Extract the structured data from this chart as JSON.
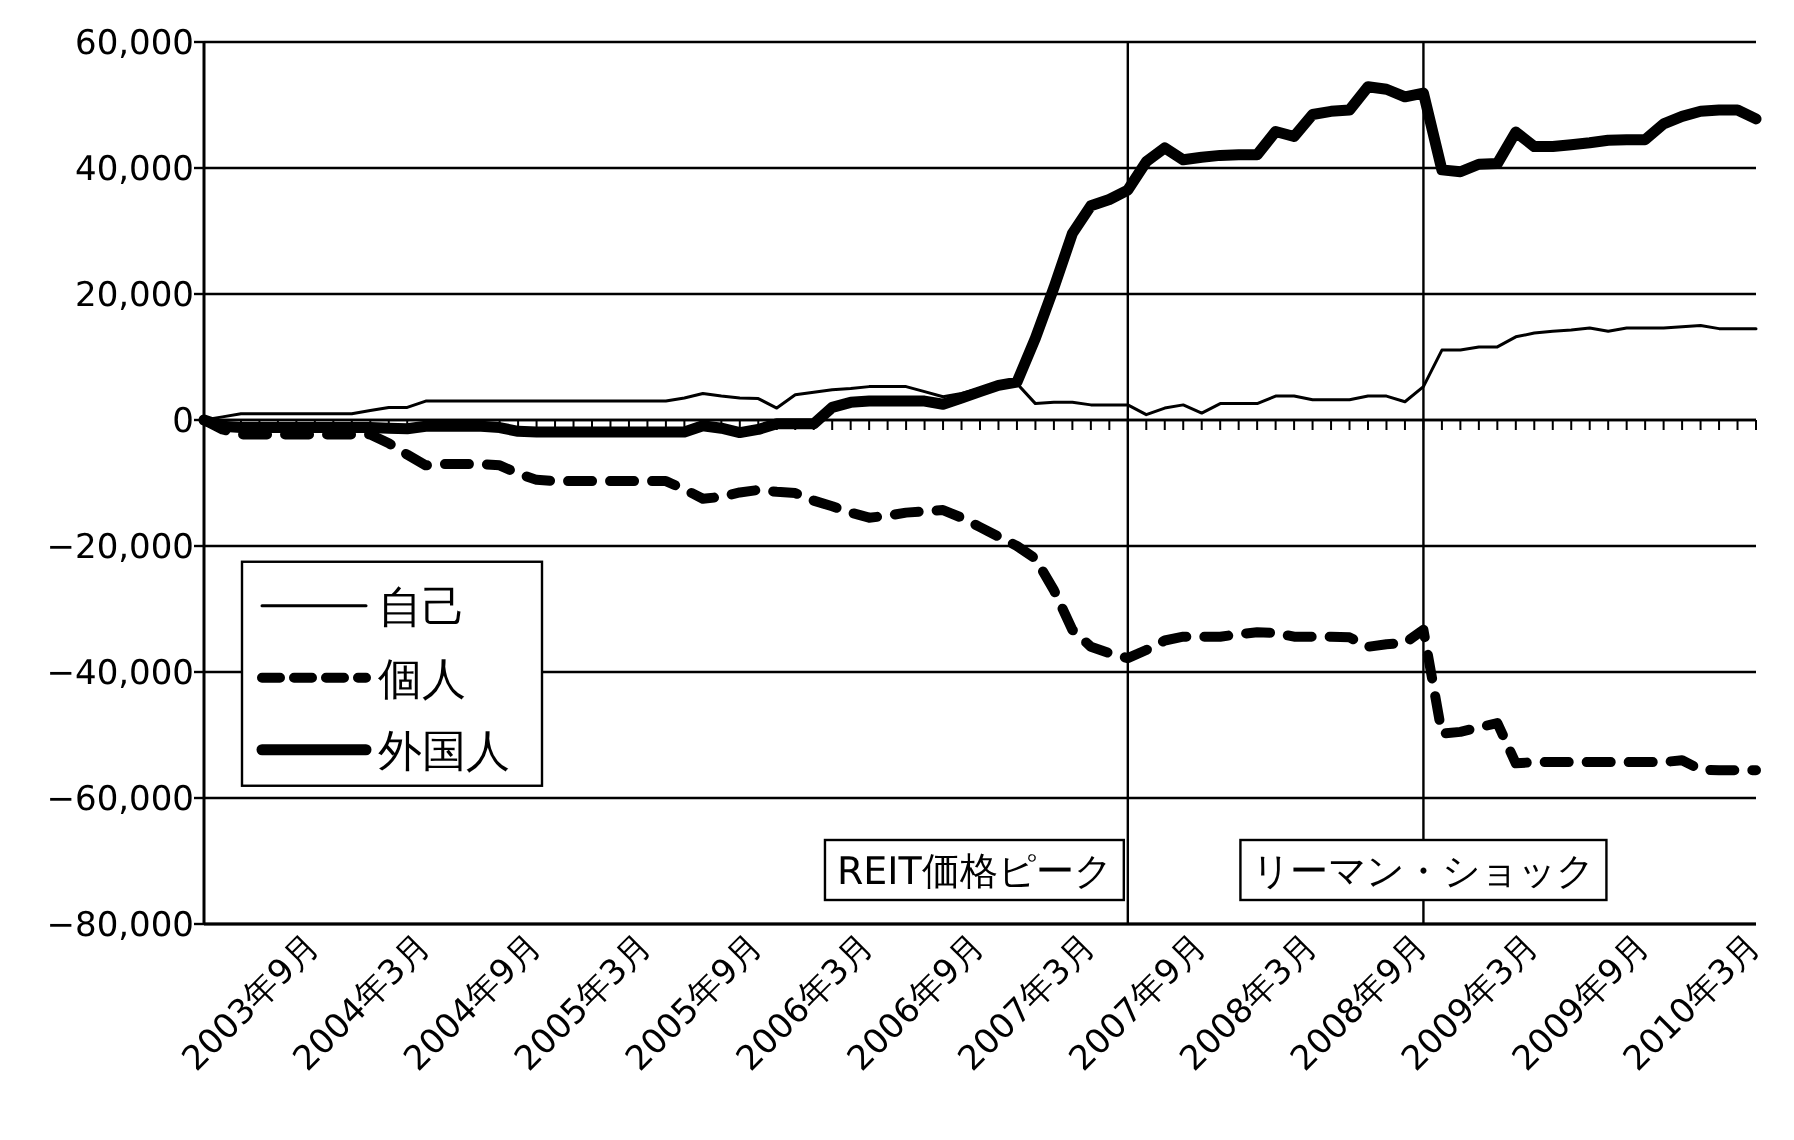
{
  "chart_data": {
    "type": "line",
    "x": [
      "2003-03",
      "2003-04",
      "2003-05",
      "2003-06",
      "2003-07",
      "2003-08",
      "2003-09",
      "2003-10",
      "2003-11",
      "2003-12",
      "2004-01",
      "2004-02",
      "2004-03",
      "2004-04",
      "2004-05",
      "2004-06",
      "2004-07",
      "2004-08",
      "2004-09",
      "2004-10",
      "2004-11",
      "2004-12",
      "2005-01",
      "2005-02",
      "2005-03",
      "2005-04",
      "2005-05",
      "2005-06",
      "2005-07",
      "2005-08",
      "2005-09",
      "2005-10",
      "2005-11",
      "2005-12",
      "2006-01",
      "2006-02",
      "2006-03",
      "2006-04",
      "2006-05",
      "2006-06",
      "2006-07",
      "2006-08",
      "2006-09",
      "2006-10",
      "2006-11",
      "2006-12",
      "2007-01",
      "2007-02",
      "2007-03",
      "2007-04",
      "2007-05",
      "2007-06",
      "2007-07",
      "2007-08",
      "2007-09",
      "2007-10",
      "2007-11",
      "2007-12",
      "2008-01",
      "2008-02",
      "2008-03",
      "2008-04",
      "2008-05",
      "2008-06",
      "2008-07",
      "2008-08",
      "2008-09",
      "2008-10",
      "2008-11",
      "2008-12",
      "2009-01",
      "2009-02",
      "2009-03",
      "2009-04",
      "2009-05",
      "2009-06",
      "2009-07",
      "2009-08",
      "2009-09",
      "2009-10",
      "2009-11",
      "2009-12",
      "2010-01",
      "2010-02",
      "2010-03"
    ],
    "series": [
      {
        "name": "自己",
        "color": "#000000",
        "line_style": "solid",
        "values": [
          0,
          500,
          1000,
          1000,
          1000,
          1000,
          1000,
          1000,
          1000,
          1500,
          2000,
          2000,
          3000,
          3000,
          3000,
          3000,
          3000,
          3000,
          3000,
          3000,
          3000,
          3000,
          3000,
          3000,
          3000,
          3000,
          3500,
          4200,
          3800,
          3500,
          3400,
          1900,
          4000,
          4400,
          4800,
          5000,
          5300,
          5300,
          5300,
          4500,
          3700,
          4200,
          5000,
          5500,
          5800,
          2600,
          2800,
          2800,
          2400,
          2400,
          2400,
          850,
          1900,
          2400,
          1100,
          2600,
          2600,
          2600,
          3800,
          3800,
          3200,
          3200,
          3200,
          3800,
          3800,
          2900,
          5300,
          11100,
          11100,
          11600,
          11600,
          13200,
          13800,
          14100,
          14300,
          14600,
          14100,
          14600,
          14600,
          14600,
          14800,
          15000,
          14500,
          14500,
          14500
        ]
      },
      {
        "name": "個人",
        "color": "#000000",
        "line_style": "dashed",
        "values": [
          0,
          -1500,
          -2300,
          -2300,
          -2300,
          -2300,
          -2300,
          -2300,
          -2300,
          -2300,
          -3700,
          -5500,
          -7200,
          -7000,
          -7000,
          -7000,
          -7200,
          -8500,
          -9500,
          -9700,
          -9700,
          -9700,
          -9700,
          -9700,
          -9700,
          -9700,
          -11000,
          -12500,
          -12200,
          -11500,
          -11100,
          -11400,
          -11600,
          -12800,
          -13700,
          -14700,
          -15500,
          -15200,
          -14700,
          -14500,
          -14300,
          -15500,
          -17000,
          -18500,
          -20000,
          -22000,
          -27000,
          -33300,
          -36000,
          -37000,
          -37800,
          -36500,
          -35000,
          -34400,
          -34400,
          -34400,
          -34000,
          -33700,
          -33800,
          -34400,
          -34400,
          -34400,
          -34500,
          -36000,
          -35600,
          -35400,
          -33300,
          -49800,
          -49500,
          -48800,
          -48100,
          -54500,
          -54300,
          -54300,
          -54300,
          -54300,
          -54300,
          -54300,
          -54300,
          -54300,
          -54000,
          -55500,
          -55600,
          -55600,
          -55600
        ]
      },
      {
        "name": "外国人",
        "color": "#000000",
        "line_style": "solid",
        "values": [
          0,
          -1000,
          -1200,
          -1200,
          -1200,
          -1200,
          -1200,
          -1200,
          -1200,
          -1200,
          -1300,
          -1400,
          -1000,
          -1000,
          -1000,
          -1000,
          -1200,
          -1800,
          -1900,
          -1900,
          -1900,
          -1900,
          -1900,
          -1900,
          -1900,
          -1900,
          -1900,
          -900,
          -1300,
          -2000,
          -1500,
          -600,
          -600,
          -600,
          2000,
          2800,
          3000,
          3000,
          3000,
          3000,
          2500,
          3500,
          4500,
          5500,
          6000,
          13000,
          21000,
          29600,
          34000,
          35000,
          36500,
          41000,
          43200,
          41300,
          41700,
          42000,
          42100,
          42100,
          45800,
          45000,
          48500,
          49000,
          49200,
          52900,
          52500,
          51300,
          51900,
          39700,
          39400,
          40600,
          40700,
          45700,
          43400,
          43400,
          43700,
          44000,
          44400,
          44500,
          44500,
          47000,
          48200,
          49000,
          49200,
          49200,
          47800
        ]
      }
    ],
    "xlim": [
      "2003-03",
      "2010-03"
    ],
    "xticks": [
      {
        "value": "2003-03",
        "label": null
      },
      {
        "value": "2003-04",
        "label": null
      },
      {
        "value": "2003-05",
        "label": null
      },
      {
        "value": "2003-06",
        "label": null
      },
      {
        "value": "2003-07",
        "label": null
      },
      {
        "value": "2003-08",
        "label": null
      },
      {
        "value": "2003-09",
        "label": "2003年9月"
      },
      {
        "value": "2003-10",
        "label": null
      },
      {
        "value": "2003-11",
        "label": null
      },
      {
        "value": "2003-12",
        "label": null
      },
      {
        "value": "2004-01",
        "label": null
      },
      {
        "value": "2004-02",
        "label": null
      },
      {
        "value": "2004-03",
        "label": "2004年3月"
      },
      {
        "value": "2004-04",
        "label": null
      },
      {
        "value": "2004-05",
        "label": null
      },
      {
        "value": "2004-06",
        "label": null
      },
      {
        "value": "2004-07",
        "label": null
      },
      {
        "value": "2004-08",
        "label": null
      },
      {
        "value": "2004-09",
        "label": "2004年9月"
      },
      {
        "value": "2004-10",
        "label": null
      },
      {
        "value": "2004-11",
        "label": null
      },
      {
        "value": "2004-12",
        "label": null
      },
      {
        "value": "2005-01",
        "label": null
      },
      {
        "value": "2005-02",
        "label": null
      },
      {
        "value": "2005-03",
        "label": "2005年3月"
      },
      {
        "value": "2005-04",
        "label": null
      },
      {
        "value": "2005-05",
        "label": null
      },
      {
        "value": "2005-06",
        "label": null
      },
      {
        "value": "2005-07",
        "label": null
      },
      {
        "value": "2005-08",
        "label": null
      },
      {
        "value": "2005-09",
        "label": "2005年9月"
      },
      {
        "value": "2005-10",
        "label": null
      },
      {
        "value": "2005-11",
        "label": null
      },
      {
        "value": "2005-12",
        "label": null
      },
      {
        "value": "2006-01",
        "label": null
      },
      {
        "value": "2006-02",
        "label": null
      },
      {
        "value": "2006-03",
        "label": "2006年3月"
      },
      {
        "value": "2006-04",
        "label": null
      },
      {
        "value": "2006-05",
        "label": null
      },
      {
        "value": "2006-06",
        "label": null
      },
      {
        "value": "2006-07",
        "label": null
      },
      {
        "value": "2006-08",
        "label": null
      },
      {
        "value": "2006-09",
        "label": "2006年9月"
      },
      {
        "value": "2006-10",
        "label": null
      },
      {
        "value": "2006-11",
        "label": null
      },
      {
        "value": "2006-12",
        "label": null
      },
      {
        "value": "2007-01",
        "label": null
      },
      {
        "value": "2007-02",
        "label": null
      },
      {
        "value": "2007-03",
        "label": "2007年3月"
      },
      {
        "value": "2007-04",
        "label": null
      },
      {
        "value": "2007-05",
        "label": null
      },
      {
        "value": "2007-06",
        "label": null
      },
      {
        "value": "2007-07",
        "label": null
      },
      {
        "value": "2007-08",
        "label": null
      },
      {
        "value": "2007-09",
        "label": "2007年9月"
      },
      {
        "value": "2007-10",
        "label": null
      },
      {
        "value": "2007-11",
        "label": null
      },
      {
        "value": "2007-12",
        "label": null
      },
      {
        "value": "2008-01",
        "label": null
      },
      {
        "value": "2008-02",
        "label": null
      },
      {
        "value": "2008-03",
        "label": "2008年3月"
      },
      {
        "value": "2008-04",
        "label": null
      },
      {
        "value": "2008-05",
        "label": null
      },
      {
        "value": "2008-06",
        "label": null
      },
      {
        "value": "2008-07",
        "label": null
      },
      {
        "value": "2008-08",
        "label": null
      },
      {
        "value": "2008-09",
        "label": "2008年9月"
      },
      {
        "value": "2008-10",
        "label": null
      },
      {
        "value": "2008-11",
        "label": null
      },
      {
        "value": "2008-12",
        "label": null
      },
      {
        "value": "2009-01",
        "label": null
      },
      {
        "value": "2009-02",
        "label": null
      },
      {
        "value": "2009-03",
        "label": "2009年3月"
      },
      {
        "value": "2009-04",
        "label": null
      },
      {
        "value": "2009-05",
        "label": null
      },
      {
        "value": "2009-06",
        "label": null
      },
      {
        "value": "2009-07",
        "label": null
      },
      {
        "value": "2009-08",
        "label": null
      },
      {
        "value": "2009-09",
        "label": "2009年9月"
      },
      {
        "value": "2009-10",
        "label": null
      },
      {
        "value": "2009-11",
        "label": null
      },
      {
        "value": "2009-12",
        "label": null
      },
      {
        "value": "2010-01",
        "label": null
      },
      {
        "value": "2010-02",
        "label": null
      },
      {
        "value": "2010-03",
        "label": "2010年3月"
      }
    ],
    "ylim": [
      -80000,
      60000
    ],
    "yticks": [
      {
        "value": -80000,
        "label": "−80,000"
      },
      {
        "value": -60000,
        "label": "−60,000"
      },
      {
        "value": -40000,
        "label": "−40,000"
      },
      {
        "value": -20000,
        "label": "−20,000"
      },
      {
        "value": 0,
        "label": "0"
      },
      {
        "value": 20000,
        "label": "20,000"
      },
      {
        "value": 40000,
        "label": "40,000"
      },
      {
        "value": 60000,
        "label": "60,000"
      }
    ],
    "ref_lines": [
      {
        "axis": "x",
        "value": "2007-05",
        "label": "REIT価格ピーク",
        "color": "#000000"
      },
      {
        "axis": "x",
        "value": "2008-09",
        "label": "リーマン・ショック",
        "color": "#000000"
      }
    ],
    "grid": "y",
    "legend": "left",
    "marker": "none"
  }
}
